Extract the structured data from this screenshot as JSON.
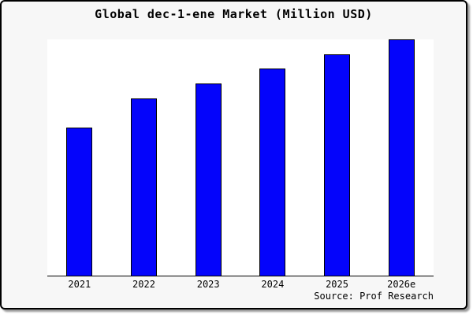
{
  "window": {
    "background_color": "#f7f7f7",
    "border_color": "#000000",
    "plot_background_color": "#ffffff"
  },
  "chart_data": {
    "type": "bar",
    "title": "Global dec-1-ene Market (Million USD)",
    "categories": [
      "2021",
      "2022",
      "2023",
      "2024",
      "2025",
      "2026e"
    ],
    "values": [
      62.7,
      75.0,
      81.3,
      87.7,
      93.8,
      100.0
    ],
    "xlabel": "",
    "ylabel": "",
    "ylim": [
      0,
      100
    ],
    "y_axis_shown": false,
    "grid": false,
    "legend": false,
    "bar_color": "#0404fb",
    "bar_border_color": "#000000",
    "source_note": "Source: Prof Research"
  }
}
